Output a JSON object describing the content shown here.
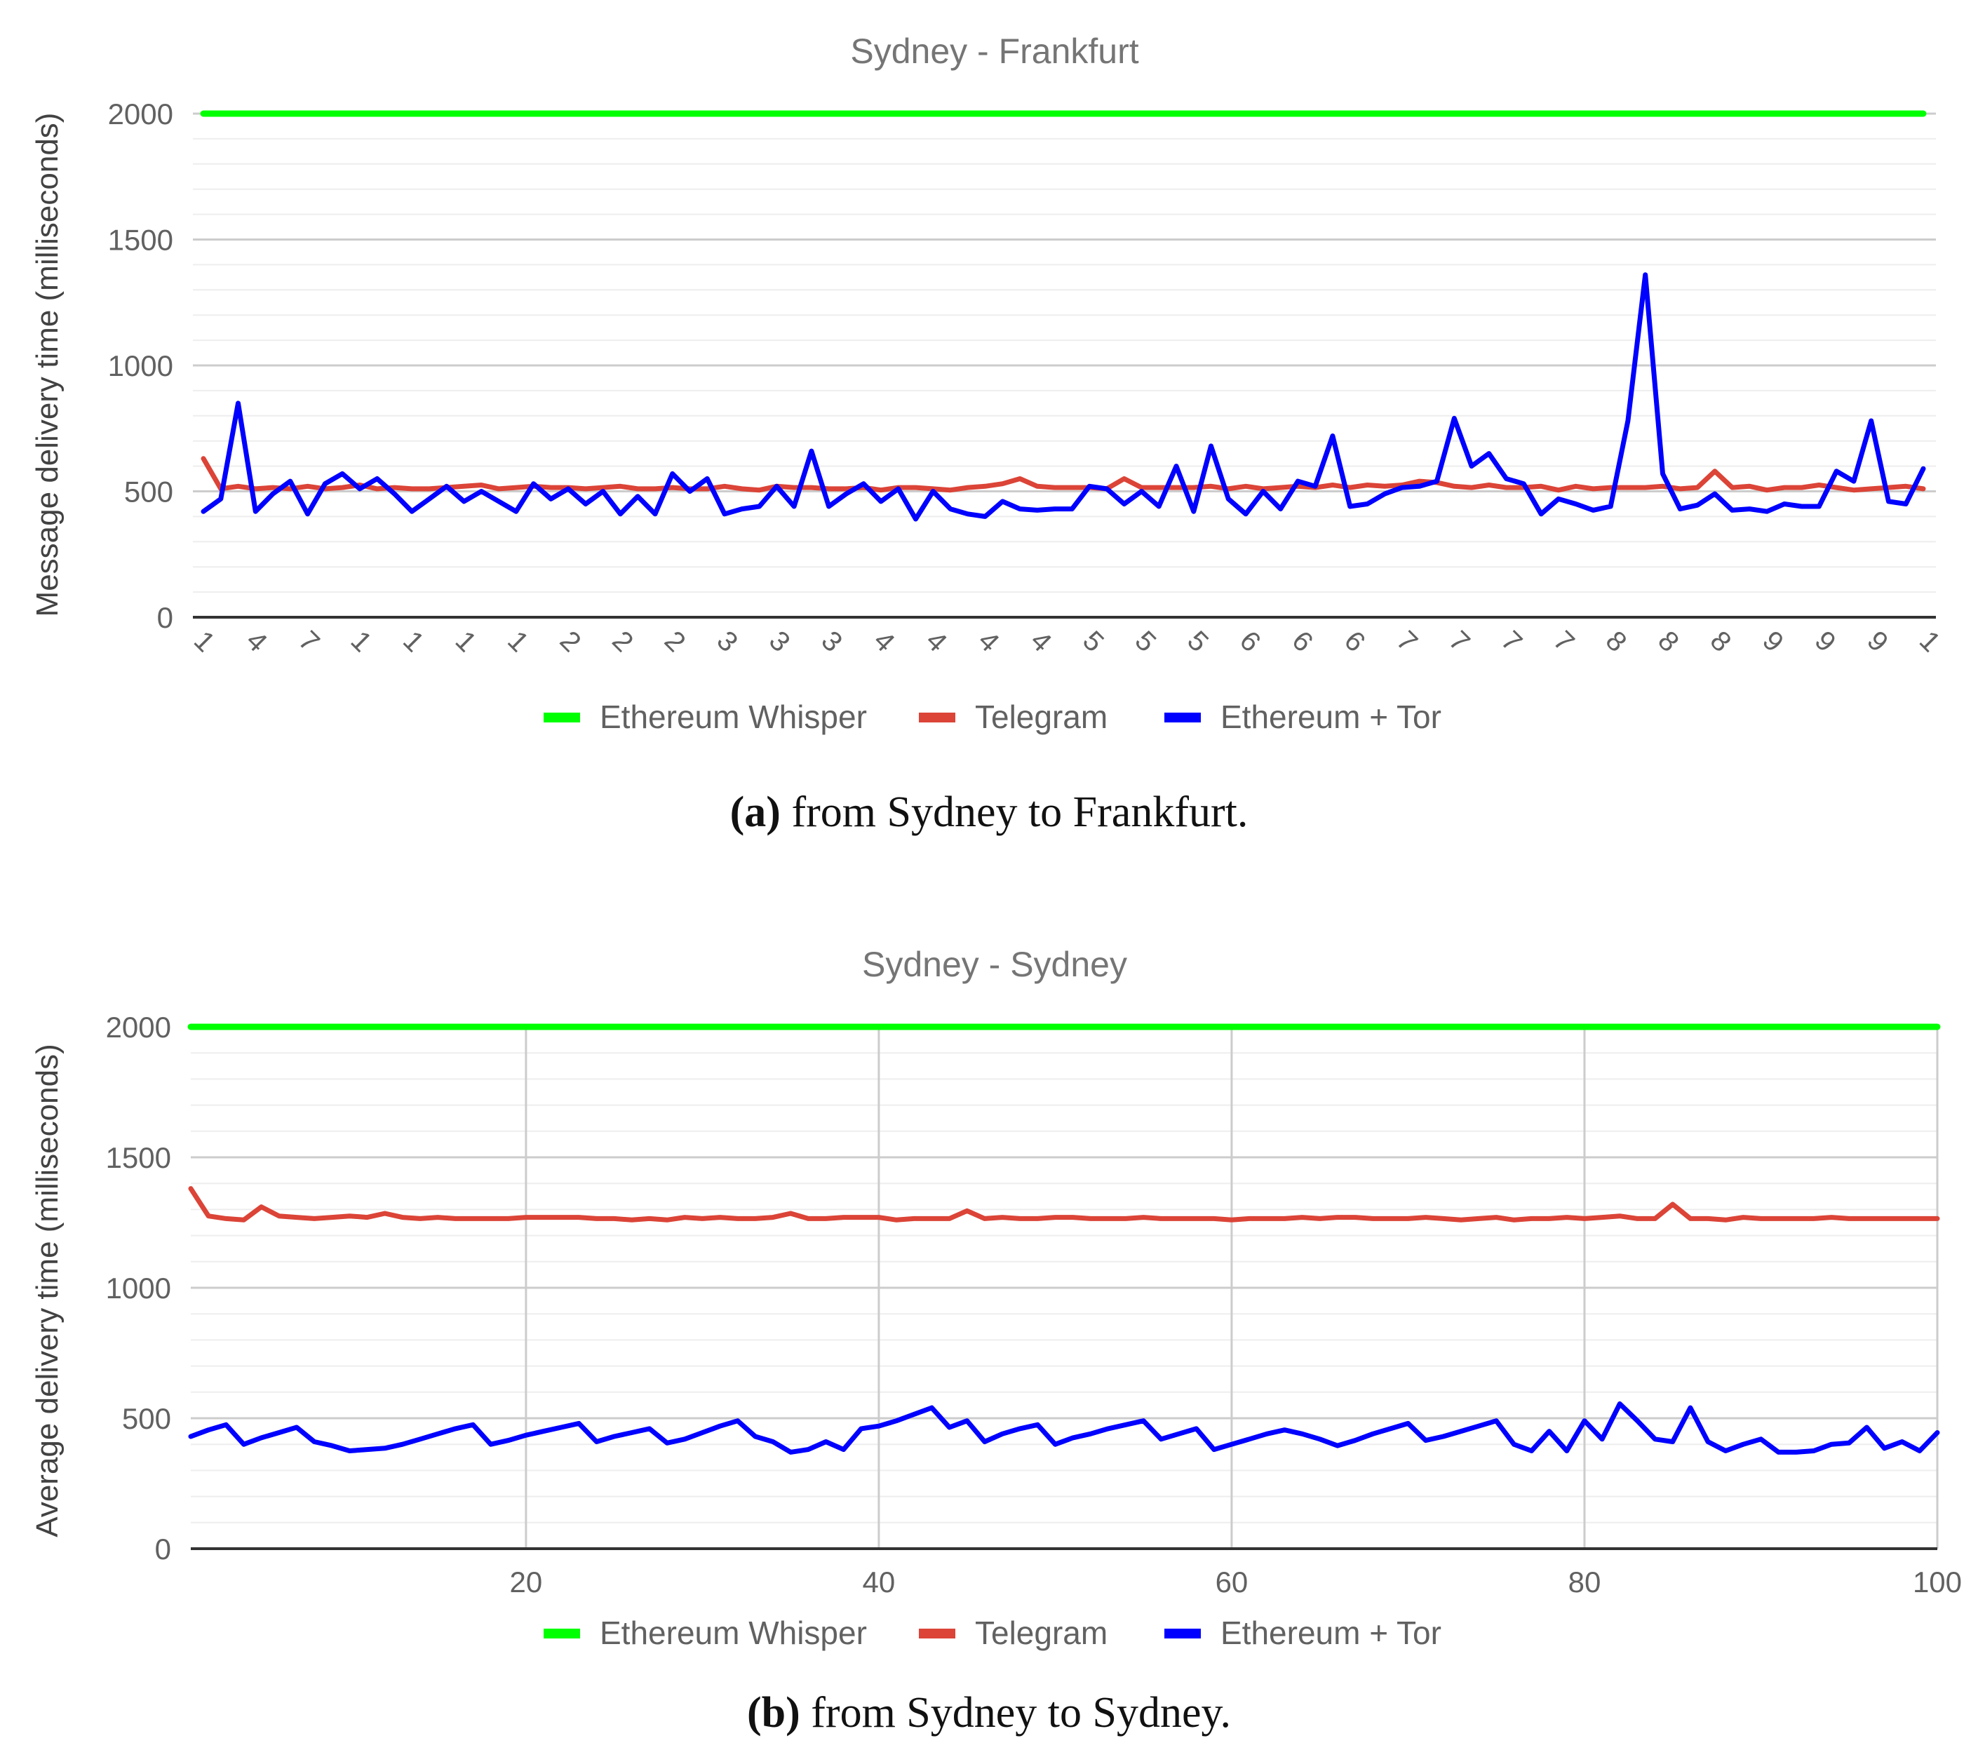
{
  "chart_data": [
    {
      "type": "line",
      "title": "Sydney - Frankfurt",
      "xlabel": "",
      "ylabel": "Message delivery time (milliseconds)",
      "ylim": [
        0,
        2000
      ],
      "yticks": [
        0,
        500,
        1000,
        1500,
        2000
      ],
      "x": [
        1,
        2,
        3,
        4,
        5,
        6,
        7,
        8,
        9,
        10,
        11,
        12,
        13,
        14,
        15,
        16,
        17,
        18,
        19,
        20,
        21,
        22,
        23,
        24,
        25,
        26,
        27,
        28,
        29,
        30,
        31,
        32,
        33,
        34,
        35,
        36,
        37,
        38,
        39,
        40,
        41,
        42,
        43,
        44,
        45,
        46,
        47,
        48,
        49,
        50,
        51,
        52,
        53,
        54,
        55,
        56,
        57,
        58,
        59,
        60,
        61,
        62,
        63,
        64,
        65,
        66,
        67,
        68,
        69,
        70,
        71,
        72,
        73,
        74,
        75,
        76,
        77,
        78,
        79,
        80,
        81,
        82,
        83,
        84,
        85,
        86,
        87,
        88,
        89,
        90,
        91,
        92,
        93,
        94,
        95,
        96,
        97,
        98,
        99,
        100
      ],
      "xtick_labels": [
        "1",
        "4",
        "7",
        "1",
        "1",
        "1",
        "1",
        "2",
        "2",
        "2",
        "3",
        "3",
        "3",
        "4",
        "4",
        "4",
        "4",
        "5",
        "5",
        "5",
        "6",
        "6",
        "6",
        "7",
        "7",
        "7",
        "7",
        "8",
        "8",
        "8",
        "9",
        "9",
        "9",
        "1"
      ],
      "grid": "horizontal",
      "legend": "bottom",
      "series": [
        {
          "name": "Ethereum Whisper",
          "color": "#00ff00",
          "values": [
            2000,
            2000,
            2000,
            2000,
            2000,
            2000,
            2000,
            2000,
            2000,
            2000,
            2000,
            2000,
            2000,
            2000,
            2000,
            2000,
            2000,
            2000,
            2000,
            2000,
            2000,
            2000,
            2000,
            2000,
            2000,
            2000,
            2000,
            2000,
            2000,
            2000,
            2000,
            2000,
            2000,
            2000,
            2000,
            2000,
            2000,
            2000,
            2000,
            2000,
            2000,
            2000,
            2000,
            2000,
            2000,
            2000,
            2000,
            2000,
            2000,
            2000,
            2000,
            2000,
            2000,
            2000,
            2000,
            2000,
            2000,
            2000,
            2000,
            2000,
            2000,
            2000,
            2000,
            2000,
            2000,
            2000,
            2000,
            2000,
            2000,
            2000,
            2000,
            2000,
            2000,
            2000,
            2000,
            2000,
            2000,
            2000,
            2000,
            2000,
            2000,
            2000,
            2000,
            2000,
            2000,
            2000,
            2000,
            2000,
            2000,
            2000,
            2000,
            2000,
            2000,
            2000,
            2000,
            2000,
            2000,
            2000,
            2000,
            2000
          ]
        },
        {
          "name": "Telegram",
          "color": "#db4437",
          "values": [
            630,
            510,
            520,
            510,
            515,
            510,
            520,
            510,
            515,
            525,
            510,
            515,
            510,
            510,
            515,
            520,
            525,
            510,
            515,
            520,
            515,
            515,
            510,
            515,
            520,
            510,
            510,
            515,
            510,
            510,
            520,
            510,
            505,
            520,
            515,
            515,
            510,
            510,
            515,
            505,
            515,
            515,
            510,
            505,
            515,
            520,
            530,
            550,
            520,
            515,
            515,
            515,
            510,
            550,
            515,
            515,
            515,
            515,
            520,
            510,
            520,
            510,
            515,
            520,
            515,
            525,
            515,
            525,
            520,
            525,
            540,
            535,
            520,
            515,
            525,
            515,
            515,
            520,
            505,
            520,
            510,
            515,
            515,
            515,
            520,
            510,
            515,
            580,
            515,
            520,
            505,
            515,
            515,
            525,
            515,
            505,
            510,
            515,
            520,
            510
          ]
        },
        {
          "name": "Ethereum + Tor",
          "color": "#0000ff",
          "values": [
            420,
            470,
            850,
            420,
            490,
            540,
            410,
            530,
            570,
            510,
            550,
            490,
            420,
            470,
            520,
            460,
            500,
            460,
            420,
            530,
            470,
            510,
            450,
            500,
            410,
            480,
            410,
            570,
            500,
            550,
            410,
            430,
            440,
            520,
            440,
            660,
            440,
            490,
            530,
            460,
            510,
            390,
            500,
            430,
            410,
            400,
            460,
            430,
            425,
            430,
            430,
            520,
            510,
            450,
            500,
            440,
            600,
            420,
            680,
            470,
            410,
            500,
            430,
            540,
            520,
            720,
            440,
            450,
            490,
            515,
            520,
            540,
            790,
            600,
            650,
            550,
            530,
            410,
            470,
            450,
            425,
            440,
            780,
            1360,
            570,
            430,
            445,
            490,
            425,
            430,
            420,
            450,
            440,
            440,
            580,
            540,
            780,
            460,
            450,
            590
          ]
        }
      ]
    },
    {
      "type": "line",
      "title": "Sydney - Sydney",
      "xlabel": "",
      "ylabel": "Average delivery time (milliseconds)",
      "xlim": [
        1,
        100
      ],
      "xticks": [
        20,
        40,
        60,
        80,
        100
      ],
      "ylim": [
        0,
        2000
      ],
      "yticks": [
        0,
        500,
        1000,
        1500,
        2000
      ],
      "x": [
        1,
        2,
        3,
        4,
        5,
        6,
        7,
        8,
        9,
        10,
        11,
        12,
        13,
        14,
        15,
        16,
        17,
        18,
        19,
        20,
        21,
        22,
        23,
        24,
        25,
        26,
        27,
        28,
        29,
        30,
        31,
        32,
        33,
        34,
        35,
        36,
        37,
        38,
        39,
        40,
        41,
        42,
        43,
        44,
        45,
        46,
        47,
        48,
        49,
        50,
        51,
        52,
        53,
        54,
        55,
        56,
        57,
        58,
        59,
        60,
        61,
        62,
        63,
        64,
        65,
        66,
        67,
        68,
        69,
        70,
        71,
        72,
        73,
        74,
        75,
        76,
        77,
        78,
        79,
        80,
        81,
        82,
        83,
        84,
        85,
        86,
        87,
        88,
        89,
        90,
        91,
        92,
        93,
        94,
        95,
        96,
        97,
        98,
        99,
        100
      ],
      "grid": "both",
      "legend": "bottom",
      "series": [
        {
          "name": "Ethereum Whisper",
          "color": "#00ff00",
          "values": [
            2000,
            2000,
            2000,
            2000,
            2000,
            2000,
            2000,
            2000,
            2000,
            2000,
            2000,
            2000,
            2000,
            2000,
            2000,
            2000,
            2000,
            2000,
            2000,
            2000,
            2000,
            2000,
            2000,
            2000,
            2000,
            2000,
            2000,
            2000,
            2000,
            2000,
            2000,
            2000,
            2000,
            2000,
            2000,
            2000,
            2000,
            2000,
            2000,
            2000,
            2000,
            2000,
            2000,
            2000,
            2000,
            2000,
            2000,
            2000,
            2000,
            2000,
            2000,
            2000,
            2000,
            2000,
            2000,
            2000,
            2000,
            2000,
            2000,
            2000,
            2000,
            2000,
            2000,
            2000,
            2000,
            2000,
            2000,
            2000,
            2000,
            2000,
            2000,
            2000,
            2000,
            2000,
            2000,
            2000,
            2000,
            2000,
            2000,
            2000,
            2000,
            2000,
            2000,
            2000,
            2000,
            2000,
            2000,
            2000,
            2000,
            2000,
            2000,
            2000,
            2000,
            2000,
            2000,
            2000,
            2000,
            2000,
            2000,
            2000
          ]
        },
        {
          "name": "Telegram",
          "color": "#db4437",
          "values": [
            1380,
            1275,
            1265,
            1260,
            1310,
            1275,
            1270,
            1265,
            1270,
            1275,
            1270,
            1285,
            1270,
            1265,
            1270,
            1265,
            1265,
            1265,
            1265,
            1270,
            1270,
            1270,
            1270,
            1265,
            1265,
            1260,
            1265,
            1260,
            1270,
            1265,
            1270,
            1265,
            1265,
            1270,
            1285,
            1265,
            1265,
            1270,
            1270,
            1270,
            1260,
            1265,
            1265,
            1265,
            1295,
            1265,
            1270,
            1265,
            1265,
            1270,
            1270,
            1265,
            1265,
            1265,
            1270,
            1265,
            1265,
            1265,
            1265,
            1260,
            1265,
            1265,
            1265,
            1270,
            1265,
            1270,
            1270,
            1265,
            1265,
            1265,
            1270,
            1265,
            1260,
            1265,
            1270,
            1260,
            1265,
            1265,
            1270,
            1265,
            1270,
            1275,
            1265,
            1265,
            1320,
            1265,
            1265,
            1260,
            1270,
            1265,
            1265,
            1265,
            1265,
            1270,
            1265,
            1265,
            1265,
            1265,
            1265,
            1265
          ]
        },
        {
          "name": "Ethereum + Tor",
          "color": "#0000ff",
          "values": [
            430,
            455,
            475,
            400,
            425,
            445,
            465,
            410,
            395,
            375,
            380,
            385,
            400,
            420,
            440,
            460,
            475,
            400,
            415,
            435,
            450,
            465,
            480,
            410,
            430,
            445,
            460,
            405,
            420,
            445,
            470,
            490,
            430,
            410,
            370,
            380,
            410,
            380,
            460,
            470,
            490,
            515,
            540,
            465,
            490,
            410,
            440,
            460,
            475,
            400,
            425,
            440,
            460,
            475,
            490,
            420,
            440,
            460,
            380,
            400,
            420,
            440,
            455,
            440,
            420,
            395,
            415,
            440,
            460,
            480,
            415,
            430,
            450,
            470,
            490,
            400,
            375,
            450,
            375,
            490,
            420,
            555,
            490,
            420,
            410,
            540,
            410,
            375,
            400,
            420,
            370,
            370,
            375,
            400,
            405,
            465,
            385,
            410,
            375,
            445
          ]
        }
      ]
    }
  ],
  "captions": {
    "a_label": "(a)",
    "a_text": " from Sydney to Frankfurt.",
    "b_label": "(b)",
    "b_text": " from Sydney to Sydney."
  }
}
